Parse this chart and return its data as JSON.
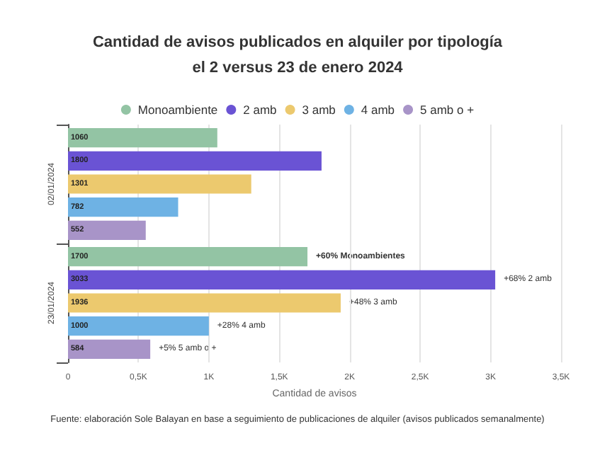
{
  "chart_data": {
    "type": "bar",
    "orientation": "horizontal",
    "title": "Cantidad de avisos publicados en alquiler por tipología\nel 2 versus 23 de enero 2024",
    "xlabel": "Cantidad de avisos",
    "categories": [
      "02/01/2024",
      "23/01/2024"
    ],
    "series": [
      {
        "name": "Monoambiente",
        "color": "#93c4a4",
        "values": [
          1060,
          1700
        ]
      },
      {
        "name": "2 amb",
        "color": "#6a53d4",
        "values": [
          1800,
          3033
        ]
      },
      {
        "name": "3 amb",
        "color": "#ecc96e",
        "values": [
          1301,
          1936
        ]
      },
      {
        "name": "4 amb",
        "color": "#6eb2e4",
        "values": [
          782,
          1000
        ]
      },
      {
        "name": "5 amb o +",
        "color": "#a894c8",
        "values": [
          552,
          584
        ]
      }
    ],
    "xlim": [
      0,
      3500
    ],
    "xticks": [
      0,
      {
        "value": 500,
        "label": "0,5K"
      },
      {
        "value": 1000,
        "label": "1K"
      },
      {
        "value": 1500,
        "label": "1,5K"
      },
      {
        "value": 2000,
        "label": "2K"
      },
      {
        "value": 2500,
        "label": "2,5K"
      },
      {
        "value": 3000,
        "label": "3K"
      },
      {
        "value": 3500,
        "label": "3,5K"
      }
    ],
    "grid": "x",
    "legend": "top",
    "data_labels": true,
    "annotations": [
      "+60% Monoambientes",
      "+68% 2 amb",
      "+48% 3 amb",
      "+28% 4 amb",
      "+5% 5 amb o +",
      "Fuente: elaboración Sole Balayan en base a seguimiento de publicaciones de alquiler (avisos publicados semanalmente)"
    ]
  }
}
